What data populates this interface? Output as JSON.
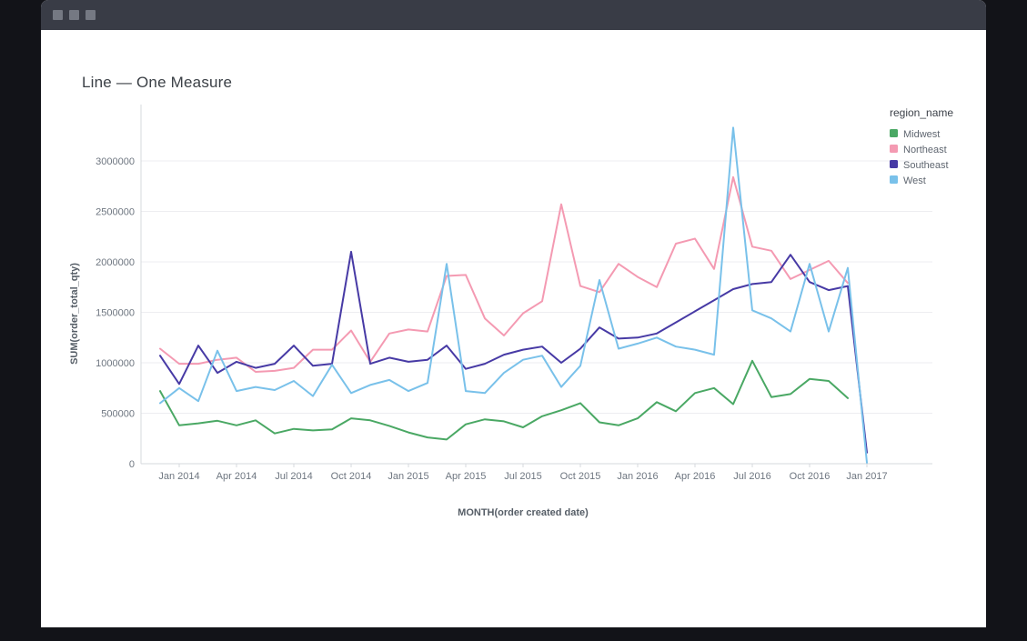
{
  "window": {
    "controls": [
      "window-button",
      "window-button",
      "window-button"
    ]
  },
  "header": {
    "title": "Line — One Measure"
  },
  "chart_data": {
    "type": "line",
    "title": "Line — One Measure",
    "xlabel": "MONTH(order created date)",
    "ylabel": "SUM(order_total_qty)",
    "legend_title": "region_name",
    "legend_position": "right",
    "grid": "horizontal",
    "ylim": [
      0,
      3550000
    ],
    "y_ticks": [
      {
        "value": 0,
        "label": "0"
      },
      {
        "value": 500000,
        "label": "500000"
      },
      {
        "value": 1000000,
        "label": "1000000"
      },
      {
        "value": 1500000,
        "label": "1500000"
      },
      {
        "value": 2000000,
        "label": "2000000"
      },
      {
        "value": 2500000,
        "label": "2500000"
      },
      {
        "value": 3000000,
        "label": "3000000"
      }
    ],
    "x": [
      "2013-12",
      "2014-01",
      "2014-02",
      "2014-03",
      "2014-04",
      "2014-05",
      "2014-06",
      "2014-07",
      "2014-08",
      "2014-09",
      "2014-10",
      "2014-11",
      "2014-12",
      "2015-01",
      "2015-02",
      "2015-03",
      "2015-04",
      "2015-05",
      "2015-06",
      "2015-07",
      "2015-08",
      "2015-09",
      "2015-10",
      "2015-11",
      "2015-12",
      "2016-01",
      "2016-02",
      "2016-03",
      "2016-04",
      "2016-05",
      "2016-06",
      "2016-07",
      "2016-08",
      "2016-09",
      "2016-10",
      "2016-11",
      "2016-12",
      "2017-01"
    ],
    "x_tick_labels": [
      {
        "index": 1,
        "label": "Jan 2014"
      },
      {
        "index": 4,
        "label": "Apr 2014"
      },
      {
        "index": 7,
        "label": "Jul 2014"
      },
      {
        "index": 10,
        "label": "Oct 2014"
      },
      {
        "index": 13,
        "label": "Jan 2015"
      },
      {
        "index": 16,
        "label": "Apr 2015"
      },
      {
        "index": 19,
        "label": "Jul 2015"
      },
      {
        "index": 22,
        "label": "Oct 2015"
      },
      {
        "index": 25,
        "label": "Jan 2016"
      },
      {
        "index": 28,
        "label": "Apr 2016"
      },
      {
        "index": 31,
        "label": "Jul 2016"
      },
      {
        "index": 34,
        "label": "Oct 2016"
      },
      {
        "index": 37,
        "label": "Jan 2017"
      }
    ],
    "series": [
      {
        "name": "Midwest",
        "color": "#4aa864",
        "values": [
          720000,
          380000,
          400000,
          425000,
          380000,
          430000,
          300000,
          345000,
          330000,
          340000,
          450000,
          430000,
          375000,
          310000,
          260000,
          240000,
          390000,
          440000,
          420000,
          360000,
          470000,
          530000,
          600000,
          410000,
          380000,
          450000,
          610000,
          520000,
          700000,
          750000,
          590000,
          1020000,
          660000,
          690000,
          840000,
          820000,
          650000,
          null
        ]
      },
      {
        "name": "Northeast",
        "color": "#f49ab2",
        "values": [
          1140000,
          990000,
          990000,
          1030000,
          1050000,
          910000,
          920000,
          950000,
          1130000,
          1130000,
          1320000,
          1010000,
          1290000,
          1330000,
          1310000,
          1860000,
          1870000,
          1440000,
          1270000,
          1490000,
          1610000,
          2570000,
          1760000,
          1700000,
          1980000,
          1850000,
          1750000,
          2180000,
          2230000,
          1930000,
          2840000,
          2150000,
          2110000,
          1830000,
          1920000,
          2010000,
          1790000,
          null
        ]
      },
      {
        "name": "Southeast",
        "color": "#473aa5",
        "values": [
          1070000,
          790000,
          1170000,
          900000,
          1010000,
          950000,
          990000,
          1170000,
          970000,
          990000,
          2100000,
          990000,
          1050000,
          1010000,
          1030000,
          1170000,
          940000,
          990000,
          1080000,
          1130000,
          1160000,
          1000000,
          1140000,
          1350000,
          1240000,
          1250000,
          1290000,
          1400000,
          1510000,
          1620000,
          1730000,
          1780000,
          1800000,
          2070000,
          1800000,
          1720000,
          1760000,
          110000
        ]
      },
      {
        "name": "West",
        "color": "#79c1ea",
        "values": [
          600000,
          750000,
          620000,
          1120000,
          720000,
          760000,
          730000,
          820000,
          670000,
          980000,
          700000,
          780000,
          830000,
          720000,
          800000,
          1980000,
          720000,
          700000,
          900000,
          1030000,
          1070000,
          760000,
          970000,
          1820000,
          1140000,
          1190000,
          1250000,
          1160000,
          1130000,
          1080000,
          3330000,
          1520000,
          1440000,
          1310000,
          1980000,
          1310000,
          1940000,
          10000
        ]
      }
    ],
    "colors": {
      "titlebar": "#393c46",
      "grid": "#ededf1",
      "axis_line": "#d6d9dd",
      "tick_text": "#6e7680"
    }
  }
}
